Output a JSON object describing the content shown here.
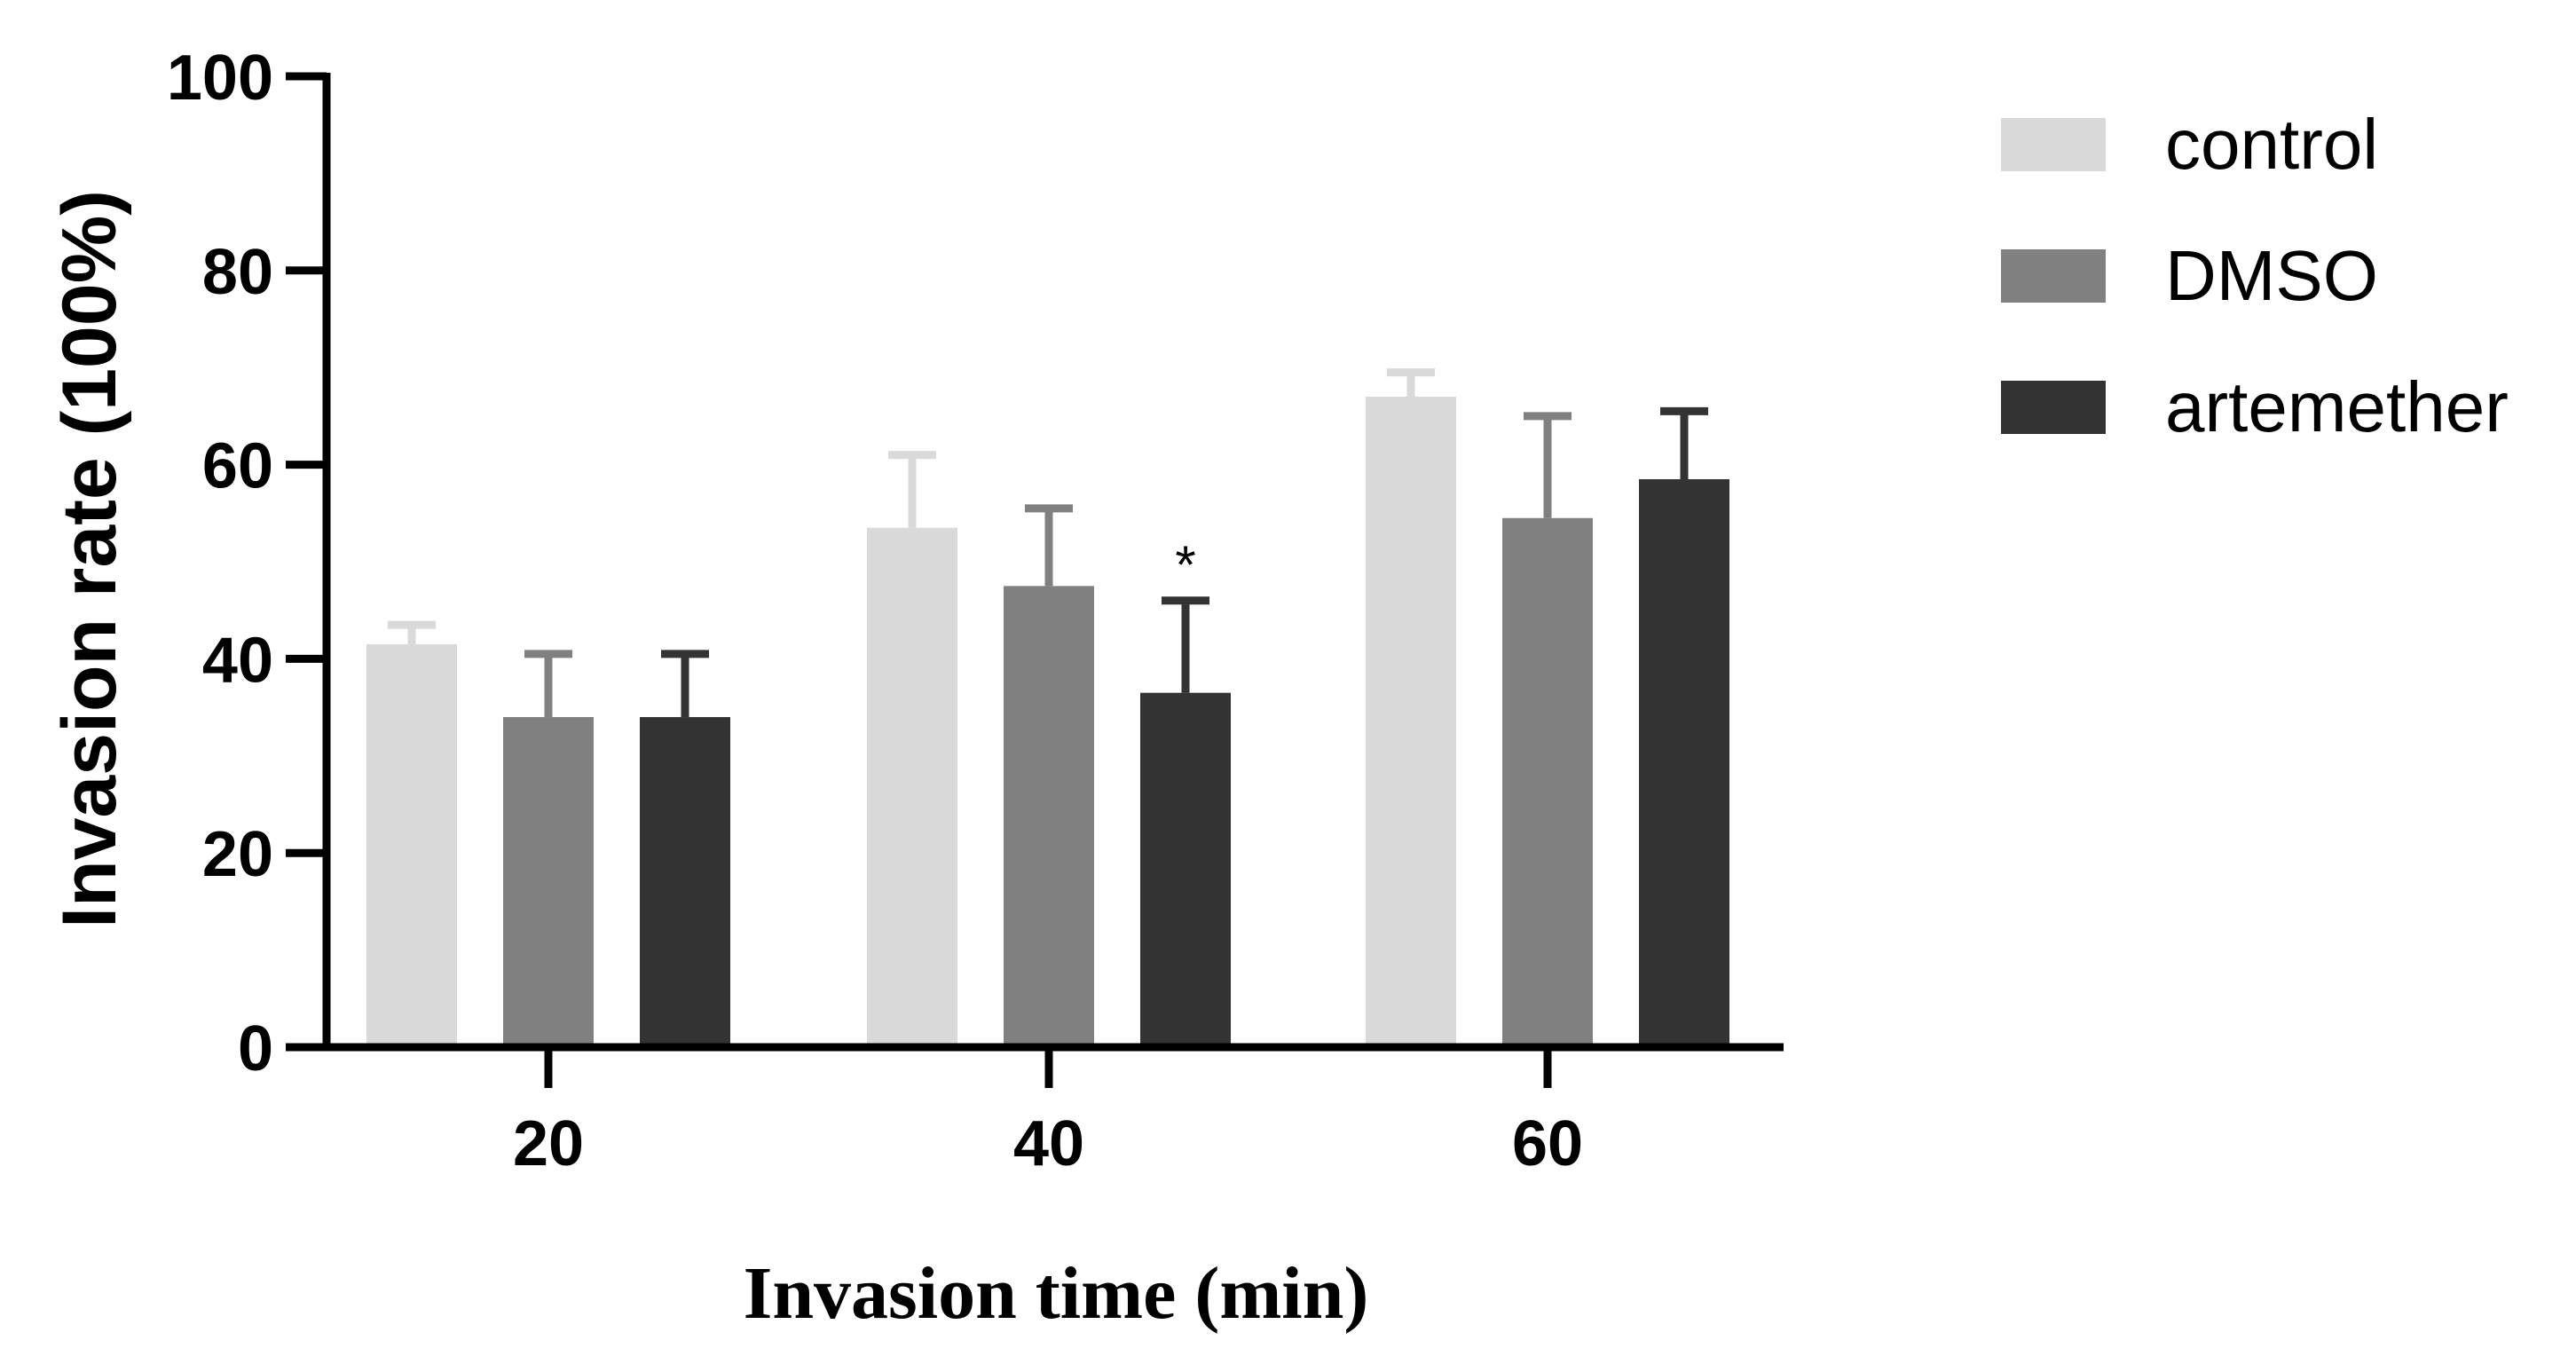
{
  "chart_data": {
    "type": "bar",
    "title": "",
    "xlabel": "Invasion time (min)",
    "ylabel": "Invasion rate (100%)",
    "ylim": [
      0,
      100
    ],
    "yticks": [
      "0",
      "20",
      "40",
      "60",
      "80",
      "100"
    ],
    "categories": [
      "20",
      "40",
      "60"
    ],
    "series": [
      {
        "name": "control",
        "color": "#d9d9d9",
        "values": [
          41.5,
          53.5,
          67
        ],
        "errors": [
          2,
          7.5,
          2.5
        ]
      },
      {
        "name": "DMSO",
        "color": "#808080",
        "values": [
          34,
          47.5,
          54.5
        ],
        "errors": [
          6.5,
          8,
          10.5
        ]
      },
      {
        "name": "artemether",
        "color": "#333333",
        "values": [
          34,
          36.5,
          58.5
        ],
        "errors": [
          6.5,
          9.5,
          7
        ]
      }
    ],
    "legend_position": "top-right",
    "annotations": [
      {
        "text": "*",
        "series": "artemether",
        "category": "40"
      }
    ]
  }
}
